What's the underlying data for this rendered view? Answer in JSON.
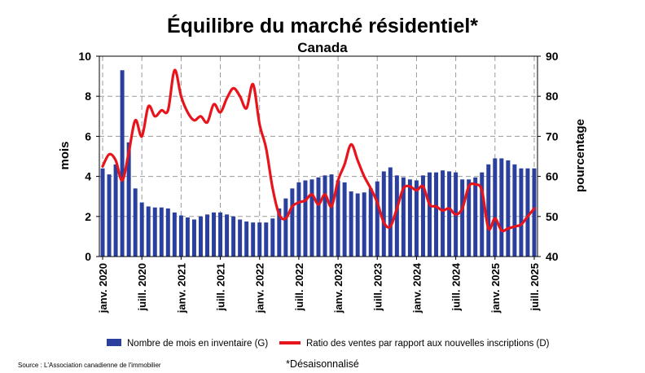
{
  "chart_data": {
    "type": "bar",
    "title": "Équilibre du marché résidentiel*",
    "subtitle": "Canada",
    "ylabel_left": "mois",
    "ylabel_right": "pourcentage",
    "ylim_left": [
      0,
      10
    ],
    "ylim_right": [
      40,
      90
    ],
    "yticks_left": [
      "0",
      "2",
      "4",
      "6",
      "8",
      "10"
    ],
    "yticks_right": [
      "40",
      "50",
      "60",
      "70",
      "80",
      "90"
    ],
    "grid": true,
    "legend_position": "bottom",
    "x": [
      "2020-01",
      "2020-02",
      "2020-03",
      "2020-04",
      "2020-05",
      "2020-06",
      "2020-07",
      "2020-08",
      "2020-09",
      "2020-10",
      "2020-11",
      "2020-12",
      "2021-01",
      "2021-02",
      "2021-03",
      "2021-04",
      "2021-05",
      "2021-06",
      "2021-07",
      "2021-08",
      "2021-09",
      "2021-10",
      "2021-11",
      "2021-12",
      "2022-01",
      "2022-02",
      "2022-03",
      "2022-04",
      "2022-05",
      "2022-06",
      "2022-07",
      "2022-08",
      "2022-09",
      "2022-10",
      "2022-11",
      "2022-12",
      "2023-01",
      "2023-02",
      "2023-03",
      "2023-04",
      "2023-05",
      "2023-06",
      "2023-07",
      "2023-08",
      "2023-09",
      "2023-10",
      "2023-11",
      "2023-12",
      "2024-01",
      "2024-02",
      "2024-03",
      "2024-04",
      "2024-05",
      "2024-06",
      "2024-07",
      "2024-08",
      "2024-09",
      "2024-10",
      "2024-11",
      "2024-12",
      "2025-01",
      "2025-02",
      "2025-03",
      "2025-04",
      "2025-05",
      "2025-06",
      "2025-07"
    ],
    "x_tick_labels": [
      "janv. 2020",
      "juill. 2020",
      "janv. 2021",
      "juill. 2021",
      "janv. 2022",
      "juill. 2022",
      "janv. 2023",
      "juill. 2023",
      "janv. 2024",
      "juill. 2024",
      "janv. 2025",
      "juill. 2025"
    ],
    "series": [
      {
        "name": "Nombre de mois en inventaire (G)",
        "type": "bar",
        "axis": "left",
        "color": "#2b3f9e",
        "values": [
          4.4,
          4.1,
          4.6,
          9.3,
          5.7,
          3.4,
          2.7,
          2.5,
          2.45,
          2.45,
          2.4,
          2.2,
          2.05,
          1.95,
          1.85,
          2.0,
          2.1,
          2.2,
          2.2,
          2.1,
          2.0,
          1.85,
          1.75,
          1.7,
          1.7,
          1.7,
          1.9,
          2.4,
          2.9,
          3.4,
          3.7,
          3.8,
          3.85,
          3.95,
          4.05,
          4.1,
          3.8,
          3.7,
          3.25,
          3.15,
          3.2,
          3.4,
          3.75,
          4.25,
          4.45,
          4.05,
          3.95,
          3.85,
          3.8,
          4.05,
          4.2,
          4.2,
          4.3,
          4.25,
          4.2,
          3.85,
          3.85,
          3.95,
          4.2,
          4.6,
          4.9,
          4.9,
          4.8,
          4.6,
          4.4,
          4.4,
          4.4
        ]
      },
      {
        "name": "Ratio des ventes par rapport aux nouvelles inscriptions (D)",
        "type": "line",
        "axis": "right",
        "color": "#e8141c",
        "values": [
          62.5,
          65.5,
          64.0,
          59.0,
          66.0,
          74.0,
          70.0,
          77.5,
          75.0,
          76.5,
          76.5,
          86.5,
          80.0,
          76.0,
          74.0,
          75.0,
          73.5,
          78.0,
          76.0,
          79.5,
          82.0,
          80.0,
          77.0,
          83.0,
          73.0,
          67.0,
          57.0,
          50.5,
          49.5,
          52.5,
          53.5,
          54.0,
          55.5,
          53.0,
          55.5,
          52.5,
          59.0,
          63.0,
          68.0,
          64.0,
          60.0,
          57.0,
          53.5,
          48.5,
          47.5,
          52.0,
          57.0,
          57.5,
          56.5,
          57.5,
          53.0,
          52.5,
          51.5,
          52.0,
          50.5,
          52.0,
          57.5,
          58.0,
          56.5,
          47.0,
          49.5,
          46.5,
          47.0,
          47.5,
          48.0,
          50.0,
          52.0
        ]
      }
    ]
  },
  "source": "Source : L'Association canadienne de l'immobilier",
  "footnote": "*Désaisonnalisé"
}
